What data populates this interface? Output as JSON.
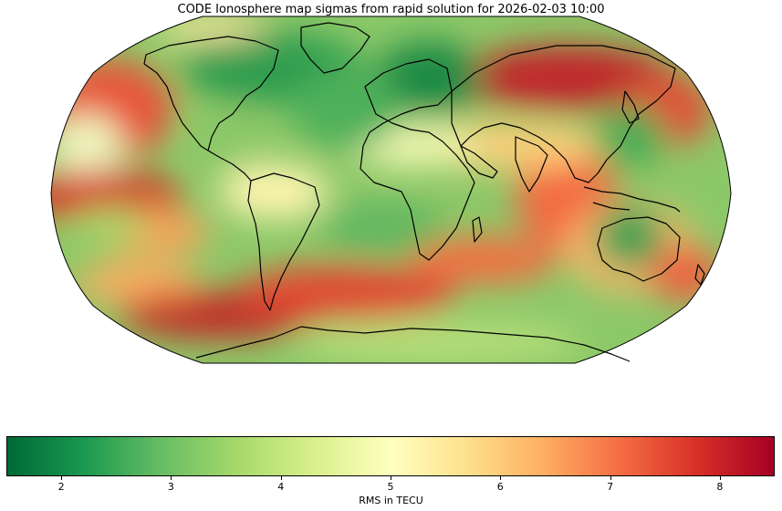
{
  "title": "CODE Ionosphere map sigmas from rapid solution for 2026-02-03 10:00",
  "map": {
    "projection": "Robinson",
    "features": [
      "coastlines",
      "rms-color-field"
    ]
  },
  "colorbar": {
    "label": "RMS in TECU",
    "min": 1.5,
    "max": 8.5,
    "ticks": [
      "2",
      "3",
      "4",
      "5",
      "6",
      "7",
      "8"
    ],
    "colormap": "RdYlGn_r",
    "colors": [
      "#006837",
      "#1a9850",
      "#66bd63",
      "#a6d96a",
      "#d9ef8b",
      "#ffffbf",
      "#fee08b",
      "#fdae61",
      "#f46d43",
      "#d73027",
      "#a50026"
    ]
  }
}
